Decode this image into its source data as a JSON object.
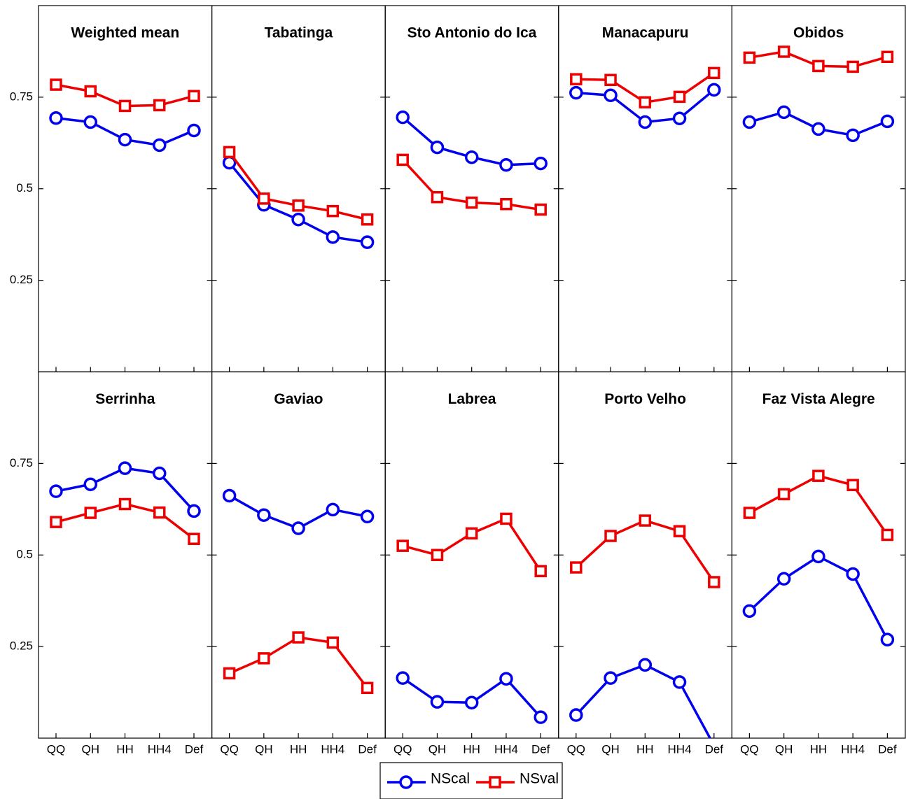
{
  "chart_data": [
    {
      "type": "line",
      "title": "Weighted mean",
      "ylim": [
        0,
        1
      ],
      "yticks": [
        0.25,
        0.5,
        0.75
      ],
      "series": [
        {
          "name": "NScal",
          "color": "#0000ee",
          "marker": "circle",
          "values": [
            0.693,
            0.682,
            0.634,
            0.619,
            0.659
          ]
        },
        {
          "name": "NSval",
          "color": "#ee0000",
          "marker": "square",
          "values": [
            0.784,
            0.766,
            0.726,
            0.728,
            0.753
          ]
        }
      ]
    },
    {
      "type": "line",
      "title": "Tabatinga",
      "ylim": [
        0,
        1
      ],
      "yticks": [
        0.25,
        0.5,
        0.75
      ],
      "series": [
        {
          "color": "#0000ee",
          "marker": "circle",
          "values": [
            0.571,
            0.456,
            0.416,
            0.368,
            0.354
          ]
        },
        {
          "color": "#ee0000",
          "marker": "square",
          "values": [
            0.6,
            0.473,
            0.454,
            0.439,
            0.416
          ]
        }
      ]
    },
    {
      "type": "line",
      "title": "Sto Antonio do Ica",
      "ylim": [
        0,
        1
      ],
      "yticks": [
        0.25,
        0.5,
        0.75
      ],
      "series": [
        {
          "color": "#0000ee",
          "marker": "circle",
          "values": [
            0.695,
            0.613,
            0.586,
            0.565,
            0.569
          ]
        },
        {
          "color": "#ee0000",
          "marker": "square",
          "values": [
            0.579,
            0.477,
            0.462,
            0.458,
            0.443
          ]
        }
      ]
    },
    {
      "type": "line",
      "title": "Manacapuru",
      "ylim": [
        0,
        1
      ],
      "yticks": [
        0.25,
        0.5,
        0.75
      ],
      "series": [
        {
          "color": "#0000ee",
          "marker": "circle",
          "values": [
            0.762,
            0.755,
            0.682,
            0.692,
            0.77
          ]
        },
        {
          "color": "#ee0000",
          "marker": "square",
          "values": [
            0.799,
            0.797,
            0.736,
            0.751,
            0.816
          ]
        }
      ]
    },
    {
      "type": "line",
      "title": "Obidos",
      "ylim": [
        0,
        1
      ],
      "yticks": [
        0.25,
        0.5,
        0.75
      ],
      "series": [
        {
          "color": "#0000ee",
          "marker": "circle",
          "values": [
            0.682,
            0.709,
            0.663,
            0.646,
            0.684
          ]
        },
        {
          "color": "#ee0000",
          "marker": "square",
          "values": [
            0.858,
            0.874,
            0.835,
            0.833,
            0.86
          ]
        }
      ]
    },
    {
      "type": "line",
      "title": "Serrinha",
      "categories": [
        "QQ",
        "QH",
        "HH",
        "HH4",
        "Def"
      ],
      "ylim": [
        0,
        1
      ],
      "yticks": [
        0.25,
        0.5,
        0.75
      ],
      "series": [
        {
          "color": "#0000ee",
          "marker": "circle",
          "values": [
            0.674,
            0.693,
            0.737,
            0.723,
            0.62
          ]
        },
        {
          "color": "#ee0000",
          "marker": "square",
          "values": [
            0.59,
            0.615,
            0.639,
            0.616,
            0.544
          ]
        }
      ]
    },
    {
      "type": "line",
      "title": "Gaviao",
      "categories": [
        "QQ",
        "QH",
        "HH",
        "HH4",
        "Def"
      ],
      "ylim": [
        0,
        1
      ],
      "yticks": [
        0.25,
        0.5,
        0.75
      ],
      "series": [
        {
          "color": "#0000ee",
          "marker": "circle",
          "values": [
            0.662,
            0.609,
            0.573,
            0.624,
            0.605
          ]
        },
        {
          "color": "#ee0000",
          "marker": "square",
          "values": [
            0.177,
            0.218,
            0.275,
            0.261,
            0.137
          ]
        }
      ]
    },
    {
      "type": "line",
      "title": "Labrea",
      "categories": [
        "QQ",
        "QH",
        "HH",
        "HH4",
        "Def"
      ],
      "ylim": [
        0,
        1
      ],
      "yticks": [
        0.25,
        0.5,
        0.75
      ],
      "series": [
        {
          "color": "#0000ee",
          "marker": "circle",
          "values": [
            0.164,
            0.099,
            0.097,
            0.162,
            0.057
          ]
        },
        {
          "color": "#ee0000",
          "marker": "square",
          "values": [
            0.525,
            0.5,
            0.559,
            0.599,
            0.456
          ]
        }
      ]
    },
    {
      "type": "line",
      "title": "Porto Velho",
      "categories": [
        "QQ",
        "QH",
        "HH",
        "HH4",
        "Def"
      ],
      "ylim": [
        0,
        1
      ],
      "yticks": [
        0.25,
        0.5,
        0.75
      ],
      "series": [
        {
          "color": "#0000ee",
          "marker": "circle",
          "values": [
            0.063,
            0.164,
            0.2,
            0.153,
            -0.02
          ]
        },
        {
          "color": "#ee0000",
          "marker": "square",
          "values": [
            0.466,
            0.552,
            0.594,
            0.565,
            0.426
          ]
        }
      ]
    },
    {
      "type": "line",
      "title": "Faz Vista Alegre",
      "categories": [
        "QQ",
        "QH",
        "HH",
        "HH4",
        "Def"
      ],
      "ylim": [
        0,
        1
      ],
      "yticks": [
        0.25,
        0.5,
        0.75
      ],
      "series": [
        {
          "color": "#0000ee",
          "marker": "circle",
          "values": [
            0.347,
            0.435,
            0.496,
            0.448,
            0.269
          ]
        },
        {
          "color": "#ee0000",
          "marker": "square",
          "values": [
            0.615,
            0.666,
            0.716,
            0.691,
            0.555
          ]
        }
      ]
    }
  ]
}
